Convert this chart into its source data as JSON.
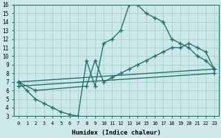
{
  "xlabel": "Humidex (Indice chaleur)",
  "ylabel": "",
  "bg_color": "#cce8e8",
  "line_color": "#1e6e6e",
  "marker": "+",
  "markersize": 4,
  "linewidth": 1.0,
  "xlim": [
    -0.5,
    23.5
  ],
  "ylim": [
    3,
    16
  ],
  "xticks": [
    0,
    1,
    2,
    3,
    4,
    5,
    6,
    7,
    8,
    9,
    10,
    11,
    12,
    13,
    14,
    15,
    16,
    17,
    18,
    19,
    20,
    21,
    22,
    23
  ],
  "yticks": [
    3,
    4,
    5,
    6,
    7,
    8,
    9,
    10,
    11,
    12,
    13,
    14,
    15,
    16
  ],
  "grid_color": "#a8cccc",
  "lines": [
    {
      "x": [
        0,
        1,
        2,
        3,
        4,
        5,
        6,
        7,
        8,
        9,
        10,
        11,
        12,
        13,
        14,
        15,
        16,
        17,
        18,
        19,
        20,
        21,
        22,
        23
      ],
      "y": [
        7,
        6,
        5,
        4.5,
        4,
        3.5,
        3.2,
        3.0,
        9.5,
        6.5,
        11.5,
        12.0,
        13.0,
        16.0,
        16.0,
        15.0,
        14.5,
        14.0,
        12.0,
        11.5,
        11.0,
        10.0,
        9.5,
        8.5
      ]
    },
    {
      "x": [
        0,
        2,
        8,
        9,
        10,
        11,
        12,
        13,
        14,
        15,
        16,
        17,
        18,
        19,
        20,
        21,
        22,
        23
      ],
      "y": [
        7,
        6,
        6.5,
        9.5,
        7.0,
        7.5,
        8.0,
        8.5,
        9.0,
        9.5,
        10.0,
        10.5,
        11.0,
        11.0,
        11.5,
        11.0,
        10.5,
        8.5
      ]
    },
    {
      "x": [
        0,
        23
      ],
      "y": [
        7,
        8.5
      ]
    },
    {
      "x": [
        0,
        23
      ],
      "y": [
        6.5,
        8.0
      ]
    }
  ]
}
